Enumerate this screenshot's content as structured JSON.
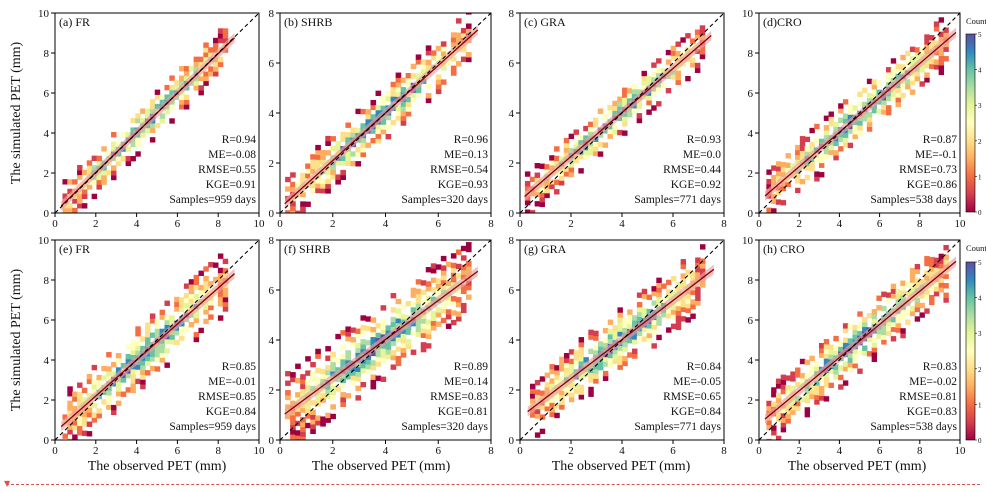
{
  "figure": {
    "ylabel": "The simulated PET (mm)",
    "xlabel": "The observed PET (mm)",
    "colorbar_label": "Counts",
    "colorbar_ticks": [
      0,
      1,
      2,
      3,
      4,
      5
    ]
  },
  "colors": {
    "colormap": [
      "#9e0142",
      "#d53e4f",
      "#f46d43",
      "#fdae61",
      "#fee08b",
      "#ffffbf",
      "#e6f598",
      "#abdda4",
      "#66c2a5",
      "#3288bd",
      "#5e4fa2"
    ],
    "regression_line": "#8b0000",
    "regression_band": "#e8a0a0",
    "one_to_one_line": "#000000"
  },
  "chart_data": [
    {
      "type": "heatmap",
      "panel": "(a) FR",
      "xlim": [
        0,
        10
      ],
      "ylim": [
        0,
        10
      ],
      "xticks": [
        0,
        2,
        4,
        6,
        8,
        10
      ],
      "yticks": [
        0,
        2,
        4,
        6,
        8,
        10
      ],
      "xrange": [
        0.5,
        8.5
      ],
      "slope": 0.99,
      "intercept": 0.05,
      "spread": 0.55,
      "stats": {
        "R": "R=0.94",
        "ME": "ME=-0.08",
        "RMSE": "RMSE=0.55",
        "KGE": "KGE=0.91",
        "Samples": "Samples=959 days"
      }
    },
    {
      "type": "heatmap",
      "panel": "(b) SHRB",
      "xlim": [
        0,
        8
      ],
      "ylim": [
        0,
        8
      ],
      "xticks": [
        0,
        2,
        4,
        6,
        8
      ],
      "yticks": [
        0,
        2,
        4,
        6,
        8
      ],
      "xrange": [
        0.3,
        7.2
      ],
      "slope": 0.95,
      "intercept": 0.2,
      "spread": 0.5,
      "stats": {
        "R": "R=0.96",
        "ME": "ME=0.13",
        "RMSE": "RMSE=0.54",
        "KGE": "KGE=0.93",
        "Samples": "Samples=320 days"
      }
    },
    {
      "type": "heatmap",
      "panel": "(c) GRA",
      "xlim": [
        0,
        8
      ],
      "ylim": [
        0,
        8
      ],
      "xticks": [
        0,
        2,
        4,
        6,
        8
      ],
      "yticks": [
        0,
        2,
        4,
        6,
        8
      ],
      "xrange": [
        0.3,
        7.2
      ],
      "slope": 0.88,
      "intercept": 0.5,
      "spread": 0.42,
      "stats": {
        "R": "R=0.93",
        "ME": "ME=0.0",
        "RMSE": "RMSE=0.44",
        "KGE": "KGE=0.92",
        "Samples": "Samples=771 days"
      }
    },
    {
      "type": "heatmap",
      "panel": "(d)CRO",
      "xlim": [
        0,
        10
      ],
      "ylim": [
        0,
        10
      ],
      "xticks": [
        0,
        2,
        4,
        6,
        8,
        10
      ],
      "yticks": [
        0,
        2,
        4,
        6,
        8,
        10
      ],
      "xrange": [
        0.5,
        9.5
      ],
      "slope": 0.86,
      "intercept": 0.6,
      "spread": 0.7,
      "stats": {
        "R": "R=0.87",
        "ME": "ME=-0.1",
        "RMSE": "RMSE=0.73",
        "KGE": "KGE=0.86",
        "Samples": "Samples=538 days"
      }
    },
    {
      "type": "heatmap",
      "panel": "(e) FR",
      "xlim": [
        0,
        10
      ],
      "ylim": [
        0,
        10
      ],
      "xticks": [
        0,
        2,
        4,
        6,
        8,
        10
      ],
      "yticks": [
        0,
        2,
        4,
        6,
        8,
        10
      ],
      "xrange": [
        0.5,
        8.5
      ],
      "slope": 0.9,
      "intercept": 0.4,
      "spread": 0.85,
      "stats": {
        "R": "R=0.85",
        "ME": "ME=-0.01",
        "RMSE": "RMSE=0.85",
        "KGE": "KGE=0.84",
        "Samples": "Samples=959 days"
      }
    },
    {
      "type": "heatmap",
      "panel": "(f) SHRB",
      "xlim": [
        0,
        8
      ],
      "ylim": [
        0,
        8
      ],
      "xticks": [
        0,
        2,
        4,
        6,
        8
      ],
      "yticks": [
        0,
        2,
        4,
        6,
        8
      ],
      "xrange": [
        0.3,
        7.2
      ],
      "slope": 0.78,
      "intercept": 0.9,
      "spread": 0.8,
      "stats": {
        "R": "R=0.89",
        "ME": "ME=0.14",
        "RMSE": "RMSE=0.83",
        "KGE": "KGE=0.81",
        "Samples": "Samples=320 days"
      }
    },
    {
      "type": "heatmap",
      "panel": "(g) GRA",
      "xlim": [
        0,
        8
      ],
      "ylim": [
        0,
        8
      ],
      "xticks": [
        0,
        2,
        4,
        6,
        8
      ],
      "yticks": [
        0,
        2,
        4,
        6,
        8
      ],
      "xrange": [
        0.5,
        7.3
      ],
      "slope": 0.78,
      "intercept": 0.9,
      "spread": 0.62,
      "stats": {
        "R": "R=0.84",
        "ME": "ME=-0.05",
        "RMSE": "RMSE=0.65",
        "KGE": "KGE=0.84",
        "Samples": "Samples=771 days"
      }
    },
    {
      "type": "heatmap",
      "panel": "(h) CRO",
      "xlim": [
        0,
        10
      ],
      "ylim": [
        0,
        10
      ],
      "xticks": [
        0,
        2,
        4,
        6,
        8,
        10
      ],
      "yticks": [
        0,
        2,
        4,
        6,
        8,
        10
      ],
      "xrange": [
        0.5,
        9.5
      ],
      "slope": 0.83,
      "intercept": 0.8,
      "spread": 0.8,
      "stats": {
        "R": "R=0.83",
        "ME": "ME=-0.02",
        "RMSE": "RMSE=0.81",
        "KGE": "KGE=0.83",
        "Samples": "Samples=538 days"
      }
    }
  ]
}
